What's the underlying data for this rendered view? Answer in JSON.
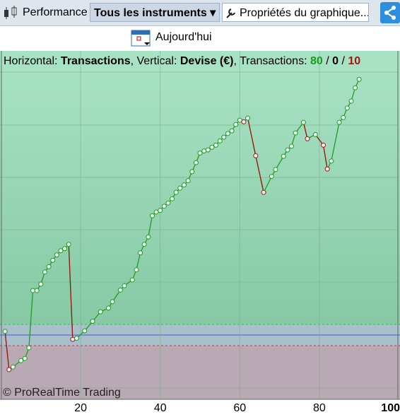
{
  "toolbar": {
    "performance": "Performance",
    "instruments": "Tous les instruments",
    "properties": "Propriétés du graphique...",
    "today": "Aujourd'hui"
  },
  "info": {
    "h_label": "Horizontal: ",
    "h_value": "Transactions",
    "v_label": ", Vertical: ",
    "v_value": "Devise (€)",
    "t_label": ", Transactions: ",
    "wins": 80,
    "sep1": " / ",
    "even": 0,
    "sep2": " / ",
    "losses": 10
  },
  "copyright": "© ProRealTime Trading",
  "chart_data": {
    "type": "line",
    "x": [
      1,
      2,
      3,
      5,
      6,
      7,
      8,
      9,
      10,
      11,
      12,
      13,
      14,
      15,
      16,
      17,
      18,
      19,
      21,
      23,
      25,
      27,
      28,
      30,
      31,
      33,
      34,
      35,
      36,
      37,
      38,
      39,
      40,
      41,
      42,
      43,
      44,
      45,
      46,
      47,
      48,
      49,
      50,
      51,
      52,
      53,
      54,
      55,
      56,
      57,
      58,
      59,
      60,
      61,
      62,
      64,
      66,
      68,
      69,
      71,
      72,
      73,
      74,
      76,
      77,
      79,
      81,
      82,
      83,
      85,
      86,
      87,
      88,
      89,
      90
    ],
    "series": [
      {
        "color": "#239b23",
        "down_color": "#a31515",
        "values": [
          0.08,
          -0.64,
          -0.59,
          -0.47,
          -0.43,
          -0.23,
          0.85,
          0.85,
          0.97,
          1.2,
          1.3,
          1.42,
          1.52,
          1.6,
          1.64,
          1.72,
          -0.07,
          -0.05,
          0.09,
          0.27,
          0.45,
          0.52,
          0.64,
          0.86,
          0.94,
          1.05,
          1.24,
          1.56,
          1.72,
          1.86,
          2.26,
          2.33,
          2.36,
          2.44,
          2.5,
          2.58,
          2.7,
          2.78,
          2.84,
          2.92,
          3.09,
          3.26,
          3.44,
          3.48,
          3.5,
          3.55,
          3.59,
          3.67,
          3.74,
          3.81,
          3.86,
          3.98,
          4.06,
          4.03,
          4.1,
          3.39,
          2.7,
          3.0,
          3.13,
          3.38,
          3.5,
          3.57,
          3.82,
          4.02,
          3.71,
          3.79,
          3.59,
          3.14,
          3.29,
          4.02,
          4.11,
          4.29,
          4.42,
          4.67,
          4.83
        ]
      }
    ],
    "xlim": [
      0,
      100
    ],
    "xticks": [
      20,
      40,
      60,
      80,
      100
    ],
    "ylim": [
      -1.2,
      5.1
    ]
  }
}
